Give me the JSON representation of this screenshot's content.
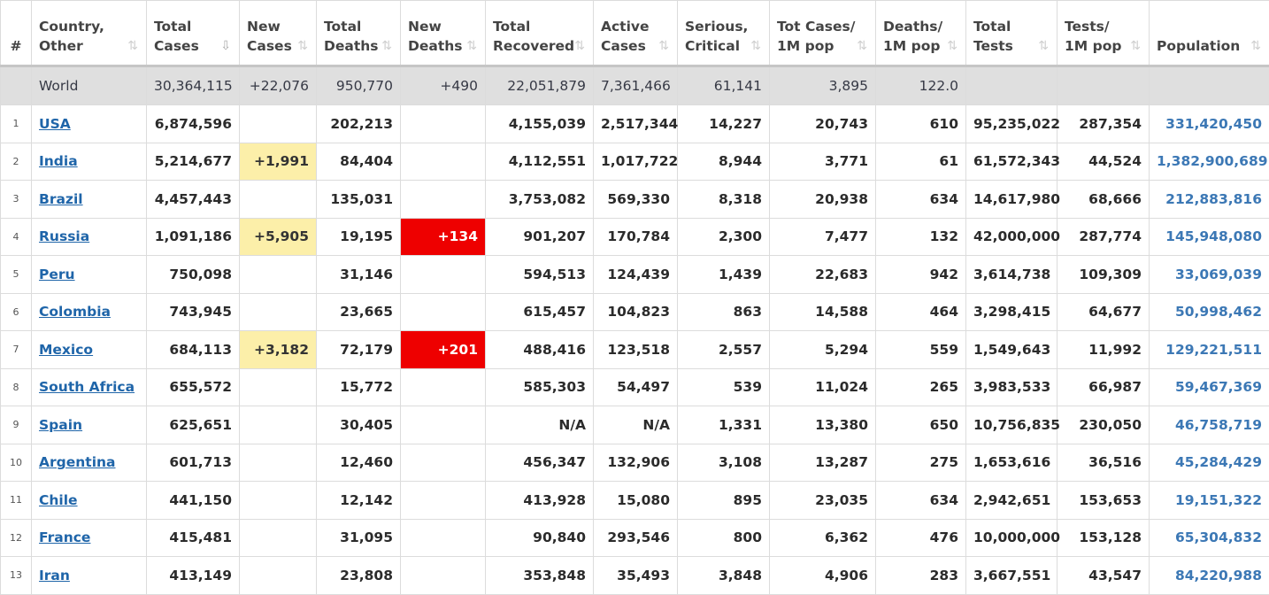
{
  "headers": [
    {
      "l1": "#",
      "l2": "",
      "sort": false
    },
    {
      "l1": "Country,",
      "l2": "Other",
      "sort": true
    },
    {
      "l1": "Total",
      "l2": "Cases",
      "sort": true,
      "active": true
    },
    {
      "l1": "New",
      "l2": "Cases",
      "sort": true
    },
    {
      "l1": "Total",
      "l2": "Deaths",
      "sort": true
    },
    {
      "l1": "New",
      "l2": "Deaths",
      "sort": true
    },
    {
      "l1": "Total",
      "l2": "Recovered",
      "sort": true
    },
    {
      "l1": "Active",
      "l2": "Cases",
      "sort": true
    },
    {
      "l1": "Serious,",
      "l2": "Critical",
      "sort": true
    },
    {
      "l1": "Tot Cases/",
      "l2": "1M pop",
      "sort": true
    },
    {
      "l1": "Deaths/",
      "l2": "1M pop",
      "sort": true
    },
    {
      "l1": "Total",
      "l2": "Tests",
      "sort": true
    },
    {
      "l1": "Tests/",
      "l2": "1M pop",
      "sort": true
    },
    {
      "l1": "Population",
      "l2": "",
      "sort": true
    }
  ],
  "sort_icon": "⇅",
  "sort_icon_active": "⇩",
  "world": {
    "country": "World",
    "total_cases": "30,364,115",
    "new_cases": "+22,076",
    "total_deaths": "950,770",
    "new_deaths": "+490",
    "total_recovered": "22,051,879",
    "active_cases": "7,361,466",
    "serious": "61,141",
    "cases_per_1m": "3,895",
    "deaths_per_1m": "122.0",
    "total_tests": "",
    "tests_per_1m": "",
    "population": ""
  },
  "rows": [
    {
      "n": "1",
      "country": "USA",
      "total_cases": "6,874,596",
      "new_cases": "",
      "total_deaths": "202,213",
      "new_deaths": "",
      "total_recovered": "4,155,039",
      "active_cases": "2,517,344",
      "serious": "14,227",
      "cases_per_1m": "20,743",
      "deaths_per_1m": "610",
      "total_tests": "95,235,022",
      "tests_per_1m": "287,354",
      "population": "331,420,450"
    },
    {
      "n": "2",
      "country": "India",
      "total_cases": "5,214,677",
      "new_cases": "+1,991",
      "total_deaths": "84,404",
      "new_deaths": "",
      "total_recovered": "4,112,551",
      "active_cases": "1,017,722",
      "serious": "8,944",
      "cases_per_1m": "3,771",
      "deaths_per_1m": "61",
      "total_tests": "61,572,343",
      "tests_per_1m": "44,524",
      "population": "1,382,900,689"
    },
    {
      "n": "3",
      "country": "Brazil",
      "total_cases": "4,457,443",
      "new_cases": "",
      "total_deaths": "135,031",
      "new_deaths": "",
      "total_recovered": "3,753,082",
      "active_cases": "569,330",
      "serious": "8,318",
      "cases_per_1m": "20,938",
      "deaths_per_1m": "634",
      "total_tests": "14,617,980",
      "tests_per_1m": "68,666",
      "population": "212,883,816"
    },
    {
      "n": "4",
      "country": "Russia",
      "total_cases": "1,091,186",
      "new_cases": "+5,905",
      "total_deaths": "19,195",
      "new_deaths": "+134",
      "total_recovered": "901,207",
      "active_cases": "170,784",
      "serious": "2,300",
      "cases_per_1m": "7,477",
      "deaths_per_1m": "132",
      "total_tests": "42,000,000",
      "tests_per_1m": "287,774",
      "population": "145,948,080"
    },
    {
      "n": "5",
      "country": "Peru",
      "total_cases": "750,098",
      "new_cases": "",
      "total_deaths": "31,146",
      "new_deaths": "",
      "total_recovered": "594,513",
      "active_cases": "124,439",
      "serious": "1,439",
      "cases_per_1m": "22,683",
      "deaths_per_1m": "942",
      "total_tests": "3,614,738",
      "tests_per_1m": "109,309",
      "population": "33,069,039"
    },
    {
      "n": "6",
      "country": "Colombia",
      "total_cases": "743,945",
      "new_cases": "",
      "total_deaths": "23,665",
      "new_deaths": "",
      "total_recovered": "615,457",
      "active_cases": "104,823",
      "serious": "863",
      "cases_per_1m": "14,588",
      "deaths_per_1m": "464",
      "total_tests": "3,298,415",
      "tests_per_1m": "64,677",
      "population": "50,998,462"
    },
    {
      "n": "7",
      "country": "Mexico",
      "total_cases": "684,113",
      "new_cases": "+3,182",
      "total_deaths": "72,179",
      "new_deaths": "+201",
      "total_recovered": "488,416",
      "active_cases": "123,518",
      "serious": "2,557",
      "cases_per_1m": "5,294",
      "deaths_per_1m": "559",
      "total_tests": "1,549,643",
      "tests_per_1m": "11,992",
      "population": "129,221,511"
    },
    {
      "n": "8",
      "country": "South Africa",
      "total_cases": "655,572",
      "new_cases": "",
      "total_deaths": "15,772",
      "new_deaths": "",
      "total_recovered": "585,303",
      "active_cases": "54,497",
      "serious": "539",
      "cases_per_1m": "11,024",
      "deaths_per_1m": "265",
      "total_tests": "3,983,533",
      "tests_per_1m": "66,987",
      "population": "59,467,369"
    },
    {
      "n": "9",
      "country": "Spain",
      "total_cases": "625,651",
      "new_cases": "",
      "total_deaths": "30,405",
      "new_deaths": "",
      "total_recovered": "N/A",
      "active_cases": "N/A",
      "serious": "1,331",
      "cases_per_1m": "13,380",
      "deaths_per_1m": "650",
      "total_tests": "10,756,835",
      "tests_per_1m": "230,050",
      "population": "46,758,719"
    },
    {
      "n": "10",
      "country": "Argentina",
      "total_cases": "601,713",
      "new_cases": "",
      "total_deaths": "12,460",
      "new_deaths": "",
      "total_recovered": "456,347",
      "active_cases": "132,906",
      "serious": "3,108",
      "cases_per_1m": "13,287",
      "deaths_per_1m": "275",
      "total_tests": "1,653,616",
      "tests_per_1m": "36,516",
      "population": "45,284,429"
    },
    {
      "n": "11",
      "country": "Chile",
      "total_cases": "441,150",
      "new_cases": "",
      "total_deaths": "12,142",
      "new_deaths": "",
      "total_recovered": "413,928",
      "active_cases": "15,080",
      "serious": "895",
      "cases_per_1m": "23,035",
      "deaths_per_1m": "634",
      "total_tests": "2,942,651",
      "tests_per_1m": "153,653",
      "population": "19,151,322"
    },
    {
      "n": "12",
      "country": "France",
      "total_cases": "415,481",
      "new_cases": "",
      "total_deaths": "31,095",
      "new_deaths": "",
      "total_recovered": "90,840",
      "active_cases": "293,546",
      "serious": "800",
      "cases_per_1m": "6,362",
      "deaths_per_1m": "476",
      "total_tests": "10,000,000",
      "tests_per_1m": "153,128",
      "population": "65,304,832"
    },
    {
      "n": "13",
      "country": "Iran",
      "total_cases": "413,149",
      "new_cases": "",
      "total_deaths": "23,808",
      "new_deaths": "",
      "total_recovered": "353,848",
      "active_cases": "35,493",
      "serious": "3,848",
      "cases_per_1m": "4,906",
      "deaths_per_1m": "283",
      "total_tests": "3,667,551",
      "tests_per_1m": "43,547",
      "population": "84,220,988"
    }
  ]
}
